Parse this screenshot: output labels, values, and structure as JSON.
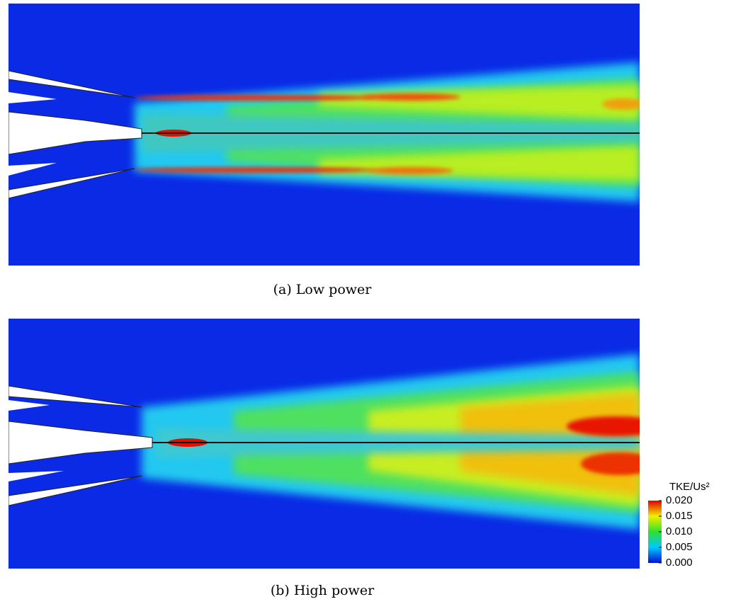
{
  "figure": {
    "panels": [
      {
        "caption": "(a) Low power"
      },
      {
        "caption": "(b) High power"
      }
    ],
    "colorbar": {
      "title": "TKE/Us²",
      "lim": [
        0,
        0.02
      ],
      "ticks": [
        {
          "value": 0.02,
          "label": "0.020"
        },
        {
          "value": 0.015,
          "label": "0.015"
        },
        {
          "value": 0.01,
          "label": "0.010"
        },
        {
          "value": 0.005,
          "label": "0.005"
        },
        {
          "value": 0,
          "label": "0.000"
        }
      ]
    }
  }
}
